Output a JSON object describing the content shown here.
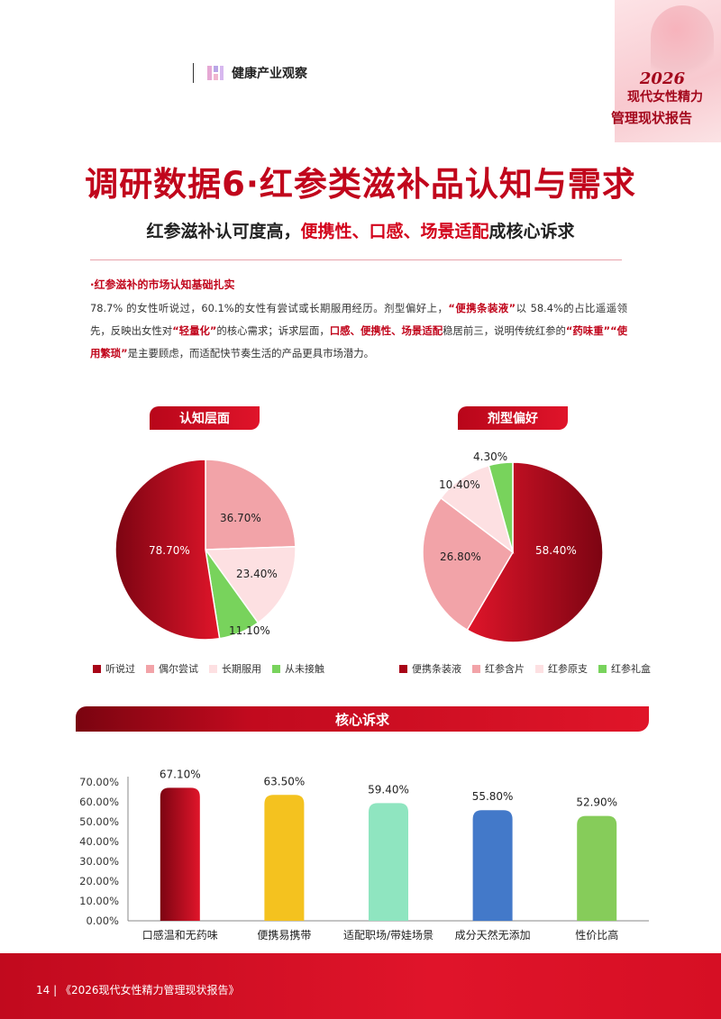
{
  "corner": {
    "year": "2026",
    "line1": "现代女性精力",
    "line2": "管理现状报告"
  },
  "header": {
    "brand": "健康产业观察"
  },
  "title": "调研数据6·红参类滋补品认知与需求",
  "subtitle": {
    "pre": "红参滋补认可度高，",
    "highlight": "便携性、口感、场景适配",
    "post": "成核心诉求"
  },
  "section_heading": "·红参滋补的市场认知基础扎实",
  "paragraph": {
    "p1": "78.7% 的女性听说过，60.1%的女性有尝试或长期服用经历。剂型偏好上，",
    "r1": "“便携条装液”",
    "p2": "以 58.4%的占比遥遥领先，反映出女性对",
    "r2": "“轻量化”",
    "p3": "的核心需求；诉求层面，",
    "r3": "口感、便携性、场景适配",
    "p4": "稳居前三，说明传统红参的",
    "r4": "“药味重”“使用繁琐”",
    "p5": "是主要顾虑，而适配快节奏生活的产品更具市场潜力。"
  },
  "colors": {
    "brand_red": "#c1061c",
    "dark_red": "#8c0414",
    "pink": "#f2a3a8",
    "light_pink": "#fde0e2",
    "green": "#78d35c",
    "yellow": "#f4c21f",
    "mint": "#8fe5c0",
    "blue": "#4379c9",
    "lime": "#86cc5a"
  },
  "chart_data": [
    {
      "type": "pie",
      "title": "认知层面",
      "categories": [
        "听说过",
        "偶尔尝试",
        "长期服用",
        "从未接触"
      ],
      "values": [
        78.7,
        36.7,
        23.4,
        11.1
      ],
      "data_labels": [
        "78.70%",
        "36.70%",
        "23.40%",
        "11.10%"
      ],
      "legend_position": "bottom"
    },
    {
      "type": "pie",
      "title": "剂型偏好",
      "categories": [
        "便携条装液",
        "红参含片",
        "红参原支",
        "红参礼盒"
      ],
      "values": [
        58.4,
        26.8,
        10.4,
        4.3
      ],
      "data_labels": [
        "58.40%",
        "26.80%",
        "10.40%",
        "4.30%"
      ],
      "legend_position": "bottom"
    },
    {
      "type": "bar",
      "title": "核心诉求",
      "categories": [
        "口感温和无药味",
        "便携易携带",
        "适配职场/带娃场景",
        "成分天然无添加",
        "性价比高"
      ],
      "values": [
        67.1,
        63.5,
        59.4,
        55.8,
        52.9
      ],
      "data_labels": [
        "67.10%",
        "63.50%",
        "59.40%",
        "55.80%",
        "52.90%"
      ],
      "ylim": [
        0,
        70
      ],
      "yticks": [
        "70.00%",
        "60.00%",
        "50.00%",
        "40.00%",
        "30.00%",
        "20.00%",
        "10.00%",
        "0.00%"
      ],
      "grid": false
    }
  ],
  "footer": {
    "page": "14",
    "text": "《2026现代女性精力管理现状报告》"
  }
}
